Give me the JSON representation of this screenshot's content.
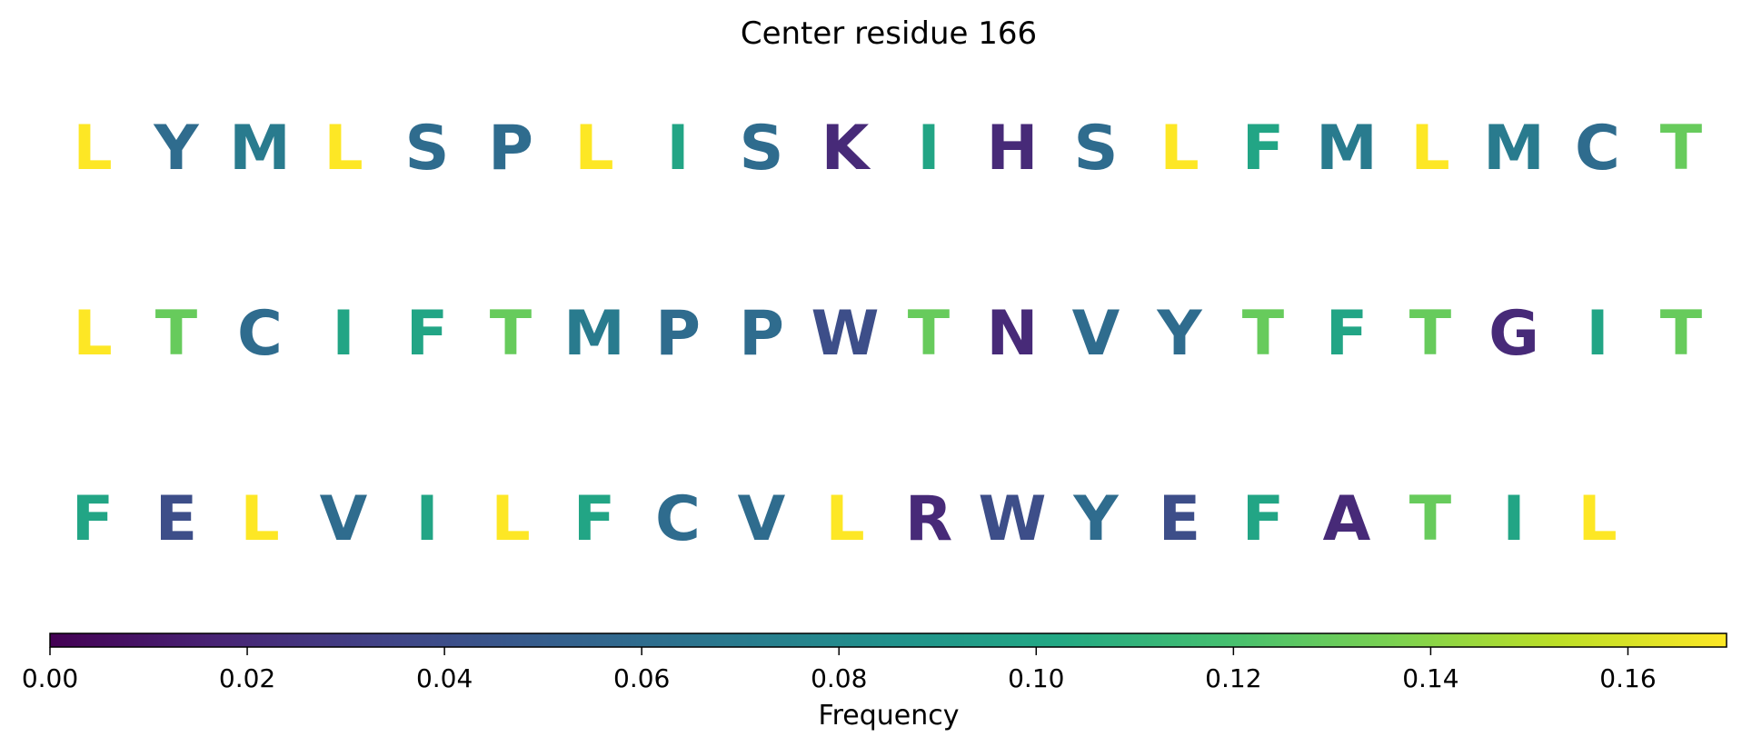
{
  "chart_data": {
    "type": "sequence_logo",
    "title": "Center residue 166",
    "rows": [
      {
        "letters": [
          "L",
          "Y",
          "M",
          "L",
          "S",
          "P",
          "L",
          "I",
          "S",
          "K",
          "I",
          "H",
          "S",
          "L",
          "F",
          "M",
          "L",
          "M",
          "C",
          "T"
        ],
        "frequencies": [
          0.17,
          0.06,
          0.07,
          0.17,
          0.06,
          0.06,
          0.17,
          0.1,
          0.06,
          0.02,
          0.1,
          0.02,
          0.06,
          0.17,
          0.1,
          0.07,
          0.17,
          0.07,
          0.06,
          0.13
        ]
      },
      {
        "letters": [
          "L",
          "T",
          "C",
          "I",
          "F",
          "T",
          "M",
          "P",
          "P",
          "W",
          "T",
          "N",
          "V",
          "Y",
          "T",
          "F",
          "T",
          "G",
          "I",
          "T"
        ],
        "frequencies": [
          0.17,
          0.13,
          0.06,
          0.1,
          0.1,
          0.13,
          0.07,
          0.06,
          0.06,
          0.04,
          0.13,
          0.02,
          0.06,
          0.06,
          0.13,
          0.1,
          0.13,
          0.02,
          0.1,
          0.13
        ]
      },
      {
        "letters": [
          "F",
          "E",
          "L",
          "V",
          "I",
          "L",
          "F",
          "C",
          "V",
          "L",
          "R",
          "W",
          "Y",
          "E",
          "F",
          "A",
          "T",
          "I",
          "L"
        ],
        "frequencies": [
          0.1,
          0.04,
          0.17,
          0.06,
          0.1,
          0.17,
          0.1,
          0.06,
          0.06,
          0.17,
          0.02,
          0.04,
          0.06,
          0.04,
          0.1,
          0.02,
          0.13,
          0.1,
          0.17
        ]
      }
    ],
    "colorbar": {
      "label": "Frequency",
      "colormap": "viridis",
      "range": [
        0,
        0.17
      ],
      "ticks": [
        0.0,
        0.02,
        0.04,
        0.06,
        0.08,
        0.1,
        0.12,
        0.14,
        0.16
      ],
      "tick_labels": [
        "0.00",
        "0.02",
        "0.04",
        "0.06",
        "0.08",
        "0.10",
        "0.12",
        "0.14",
        "0.16"
      ]
    }
  }
}
